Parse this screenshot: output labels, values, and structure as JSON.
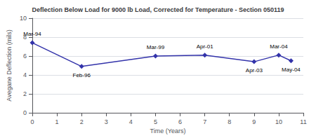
{
  "chart_data": {
    "type": "line",
    "title": "Deflection Below Load for 9000 lb Load, Corrected for Temperature - Section 050119",
    "xlabel": "Time (Years)",
    "ylabel": "Avegane Deflection (mils)",
    "x": [
      0,
      2,
      5,
      7,
      9,
      10,
      10.5
    ],
    "values": [
      7.4,
      4.9,
      6.0,
      6.1,
      5.4,
      6.1,
      5.5
    ],
    "annotations": [
      "Mar-94",
      "Feb-96",
      "Mar-99",
      "Apr-01",
      "Apr-03",
      "Mar-04",
      "May-04"
    ],
    "color": "#3333AA",
    "marker": "diamond",
    "xlim": [
      0,
      11
    ],
    "ylim": [
      0,
      10
    ],
    "xticks": [
      0,
      1,
      2,
      3,
      4,
      5,
      6,
      7,
      8,
      9,
      10,
      11
    ],
    "yticks": [
      0,
      2,
      4,
      6,
      8,
      10
    ],
    "grid": true
  }
}
